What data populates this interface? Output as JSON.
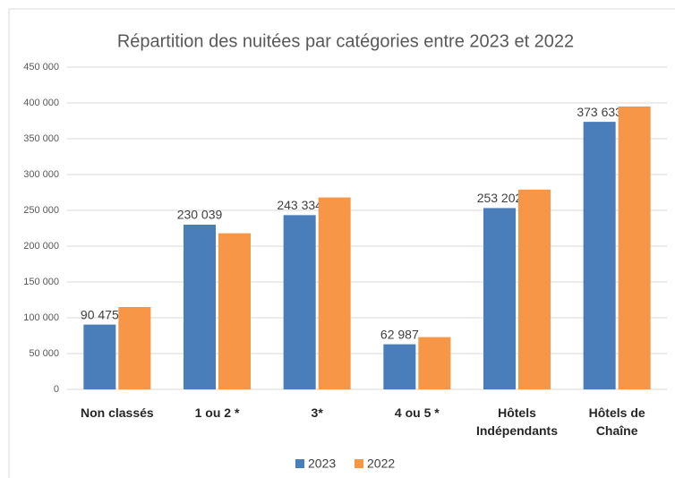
{
  "chart_data": {
    "type": "bar",
    "title": "Répartition des nuitées par catégories entre 2023 et 2022",
    "categories": [
      "Non classés",
      "1 ou 2 *",
      "3*",
      "4 ou 5 *",
      "Hôtels Indépendants",
      "Hôtels de Chaîne"
    ],
    "series": [
      {
        "name": "2023",
        "color": "#4a7ebb",
        "values": [
          90475,
          230039,
          243334,
          62987,
          253202,
          373633
        ],
        "value_labels": [
          "90 475",
          "230 039",
          "243 334",
          "62 987",
          "253 202",
          "373 633"
        ]
      },
      {
        "name": "2022",
        "color": "#f79646",
        "values": [
          115000,
          218000,
          268000,
          73000,
          279000,
          395000
        ]
      }
    ],
    "ylim": [
      0,
      450000
    ],
    "yticks": [
      0,
      {
        "value": 50000,
        "label": "50 000"
      },
      {
        "value": 100000,
        "label": "100 000"
      },
      {
        "value": 150000,
        "label": "150 000"
      },
      {
        "value": 200000,
        "label": "200 000"
      },
      {
        "value": 250000,
        "label": "250 000"
      },
      {
        "value": 300000,
        "label": "300 000"
      },
      {
        "value": 350000,
        "label": "350 000"
      },
      {
        "value": 400000,
        "label": "400 000"
      },
      {
        "value": 450000,
        "label": "450 000"
      }
    ],
    "grid": true,
    "legend": "bottom"
  }
}
